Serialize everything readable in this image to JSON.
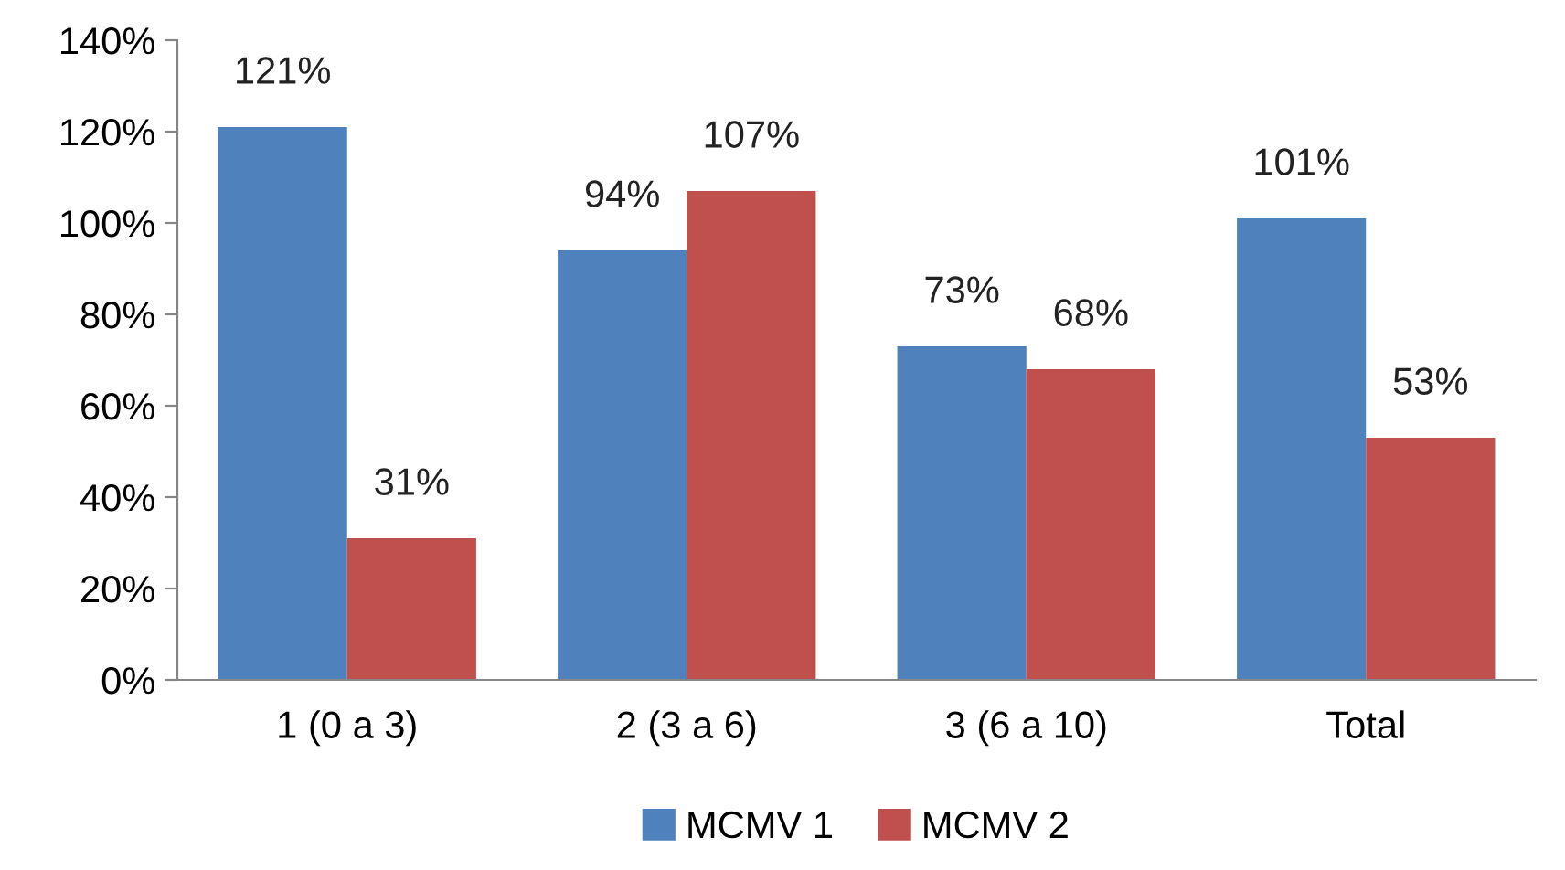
{
  "chart_data": {
    "type": "bar",
    "categories": [
      "1 (0 a 3)",
      "2 (3 a 6)",
      "3 (6 a 10)",
      "Total"
    ],
    "series": [
      {
        "name": "MCMV 1",
        "color": "#4f81bd",
        "values": [
          121,
          94,
          73,
          101
        ],
        "value_labels": [
          "121%",
          "94%",
          "73%",
          "101%"
        ]
      },
      {
        "name": "MCMV 2",
        "color": "#c0504d",
        "values": [
          31,
          107,
          68,
          53
        ],
        "value_labels": [
          "31%",
          "107%",
          "68%",
          "53%"
        ]
      }
    ],
    "ylim": [
      0,
      140
    ],
    "yticks": [
      {
        "value": 0,
        "label": "0%"
      },
      {
        "value": 20,
        "label": "20%"
      },
      {
        "value": 40,
        "label": "40%"
      },
      {
        "value": 60,
        "label": "60%"
      },
      {
        "value": 80,
        "label": "80%"
      },
      {
        "value": 100,
        "label": "100%"
      },
      {
        "value": 120,
        "label": "120%"
      },
      {
        "value": 140,
        "label": "140%"
      }
    ],
    "grid": false,
    "legend": "bottom"
  }
}
